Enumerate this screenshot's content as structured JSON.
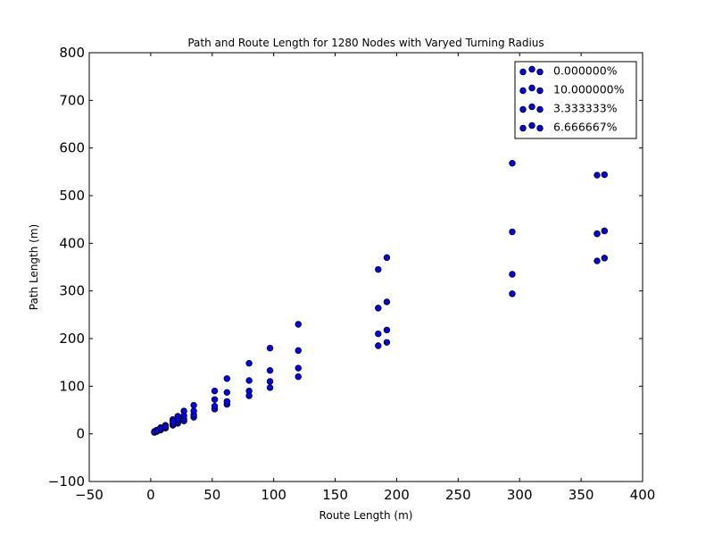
{
  "chart_data": {
    "type": "scatter",
    "title": "Path and Route Length for 1280 Nodes with Varyed Turning Radius",
    "xlabel": "Route Length (m)",
    "ylabel": "Path Length (m)",
    "xlim": [
      -50,
      400
    ],
    "ylim": [
      -100,
      800
    ],
    "xticks": [
      -50,
      0,
      50,
      100,
      150,
      200,
      250,
      300,
      350,
      400
    ],
    "yticks": [
      -100,
      0,
      100,
      200,
      300,
      400,
      500,
      600,
      700,
      800
    ],
    "xtick_labels": [
      "−50",
      "0",
      "50",
      "100",
      "150",
      "200",
      "250",
      "300",
      "350",
      "400"
    ],
    "ytick_labels": [
      "−100",
      "0",
      "100",
      "200",
      "300",
      "400",
      "500",
      "600",
      "700",
      "800"
    ],
    "marker_color": "#0000ff",
    "legend_position": "top-right",
    "series": [
      {
        "name": "0.000000%",
        "x": [
          3,
          5,
          8,
          12,
          18,
          22,
          27,
          35,
          52,
          62,
          80,
          97,
          120,
          185,
          192,
          294,
          363,
          369
        ],
        "y": [
          3,
          5,
          8,
          12,
          18,
          22,
          27,
          35,
          52,
          62,
          80,
          97,
          120,
          185,
          192,
          294,
          363,
          369
        ]
      },
      {
        "name": "10.000000%",
        "x": [
          3,
          5,
          8,
          12,
          18,
          22,
          27,
          35,
          52,
          62,
          80,
          97,
          120,
          185,
          192,
          294,
          363,
          369
        ],
        "y": [
          5,
          8,
          13,
          18,
          30,
          37,
          48,
          60,
          90,
          116,
          148,
          180,
          230,
          345,
          370,
          568,
          543,
          544
        ]
      },
      {
        "name": "3.333333%",
        "x": [
          3,
          5,
          8,
          12,
          18,
          22,
          27,
          35,
          52,
          62,
          80,
          97,
          120,
          185,
          192,
          294,
          363,
          369
        ],
        "y": [
          4,
          6,
          9,
          13,
          21,
          25,
          31,
          40,
          58,
          68,
          90,
          110,
          138,
          210,
          218,
          335,
          420,
          426
        ]
      },
      {
        "name": "6.666667%",
        "x": [
          3,
          5,
          8,
          12,
          18,
          22,
          27,
          35,
          52,
          62,
          80,
          97,
          120,
          185,
          192,
          294,
          363,
          369
        ],
        "y": [
          4,
          7,
          11,
          15,
          26,
          30,
          38,
          48,
          72,
          87,
          112,
          133,
          175,
          264,
          277,
          424,
          420,
          426
        ]
      }
    ]
  }
}
